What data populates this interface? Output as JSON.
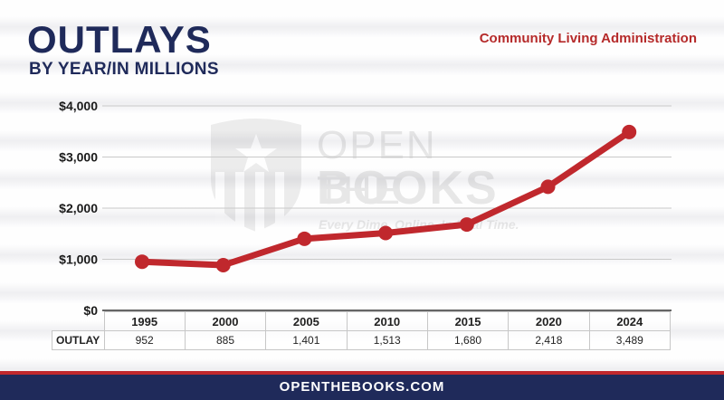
{
  "header": {
    "title": "OUTLAYS",
    "subtitle": "BY YEAR/IN MILLIONS",
    "agency": "Community Living Administration"
  },
  "watermark": {
    "line1": "OPEN THE",
    "line2": "BOOKS",
    "tagline": "Every Dime. Online. In Real Time."
  },
  "table": {
    "row_label": "OUTLAY",
    "years": [
      "1995",
      "2000",
      "2005",
      "2010",
      "2015",
      "2020",
      "2024"
    ],
    "values": [
      "952",
      "885",
      "1,401",
      "1,513",
      "1,680",
      "2,418",
      "3,489"
    ]
  },
  "footer": {
    "text": "OPENTHEBOOKS.COM"
  },
  "colors": {
    "line": "#c0282d",
    "title": "#1f2a5a",
    "footer_bg": "#1f2a5a",
    "accent": "#b52a2a"
  },
  "chart_data": {
    "type": "line",
    "title": "OUTLAYS",
    "subtitle": "BY YEAR/IN MILLIONS",
    "categories": [
      "1995",
      "2000",
      "2005",
      "2010",
      "2015",
      "2020",
      "2024"
    ],
    "series": [
      {
        "values": [
          952,
          885,
          1401,
          1513,
          1680,
          2418,
          3489
        ]
      }
    ],
    "ylim": [
      0,
      4000
    ],
    "yticks": [
      0,
      1000,
      2000,
      3000,
      4000
    ],
    "ytick_labels": [
      "$0",
      "$1,000",
      "$2,000",
      "$3,000",
      "$4,000"
    ],
    "xlabel": "",
    "ylabel": "",
    "grid": true,
    "legend": "none"
  }
}
